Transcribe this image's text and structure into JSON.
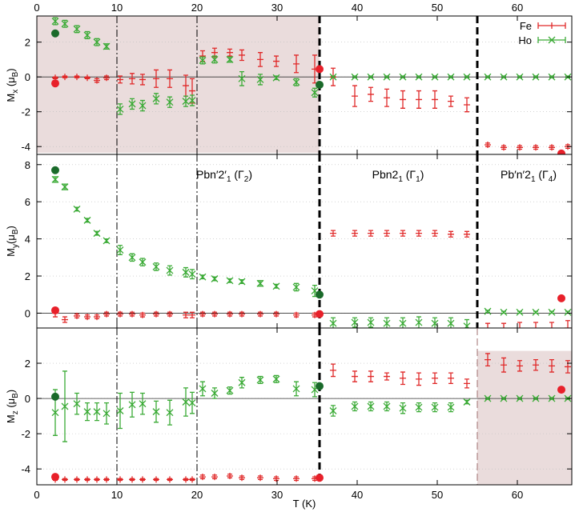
{
  "chart_data": [
    {
      "type": "scatter",
      "xlim": [
        0,
        66.8
      ],
      "ylim": [
        -4.45,
        3.5
      ],
      "xticks": [
        0,
        10,
        20,
        30,
        40,
        50,
        60
      ],
      "yticks": [
        -4,
        -2,
        0,
        2
      ],
      "xtick_labels": "top",
      "grid": true,
      "zero_line": true,
      "legend": "top-right",
      "ylabel": [
        "M",
        "x",
        " (μ",
        "B",
        ")"
      ],
      "shade": {
        "x": [
          0,
          35.3
        ],
        "y": [
          -4.35,
          3.5
        ],
        "color": "#eadcdc"
      },
      "vlines": [
        {
          "x": 10,
          "style": "dashdot"
        },
        {
          "x": 20,
          "style": "dashdot"
        },
        {
          "x": 35.3,
          "style": "dash-thick"
        },
        {
          "x": 55,
          "style": "dash-thick"
        }
      ],
      "series": [
        {
          "name": "Fe",
          "color": "#e02828",
          "marker": "plus",
          "x": [
            2.3,
            3.5,
            5,
            6.3,
            7.5,
            8.7,
            10.4,
            11.9,
            13.2,
            14.9,
            16.6,
            18.6,
            19.4,
            20.7,
            22.2,
            24.1,
            25.6,
            27.9,
            29.9,
            32.4,
            34.7,
            37,
            39.7,
            41.7,
            43.7,
            45.7,
            47.7,
            49.7,
            51.7,
            53.7,
            56.3,
            58.3,
            60.3,
            62.3,
            64.3,
            66.3
          ],
          "values": [
            -0.05,
            0,
            0,
            -0.05,
            -0.2,
            -0.05,
            -0.15,
            -0.1,
            -0.15,
            -0.1,
            -0.1,
            -0.5,
            -0.8,
            1.2,
            1.4,
            1.4,
            1.25,
            1,
            0.9,
            0.75,
            0.45,
            0,
            -1.1,
            -1,
            -1.2,
            -1.3,
            -1.3,
            -1.3,
            -1.4,
            -1.6,
            -3.9,
            -4.05,
            -4.05,
            -4.05,
            -4.05,
            -4
          ],
          "errors": [
            0.05,
            0.05,
            0.05,
            0.05,
            0.1,
            0.1,
            0.2,
            0.3,
            0.3,
            0.5,
            0.5,
            0.6,
            0.7,
            0.3,
            0.25,
            0.2,
            0.3,
            0.4,
            0.3,
            0.5,
            0.8,
            0.5,
            0.6,
            0.4,
            0.5,
            0.5,
            0.5,
            0.5,
            0.3,
            0.4,
            0.1,
            0.1,
            0.1,
            0.1,
            0.1,
            0.1
          ]
        },
        {
          "name": "Ho",
          "color": "#3aaa35",
          "marker": "cross",
          "x": [
            2.3,
            3.5,
            5,
            6.3,
            7.5,
            8.7,
            10.4,
            11.9,
            13.2,
            14.9,
            16.6,
            18.6,
            19.4,
            20.7,
            22.2,
            24.1,
            25.6,
            27.9,
            29.9,
            32.4,
            34.7,
            37,
            39.7,
            41.7,
            43.7,
            45.7,
            47.7,
            49.7,
            51.7,
            53.7,
            56.3,
            58.3,
            60.3,
            62.3,
            64.3,
            66.3
          ],
          "values": [
            3.2,
            3.05,
            2.75,
            2.4,
            2,
            1.75,
            -1.85,
            -1.55,
            -1.65,
            -1.25,
            -1.45,
            -1.4,
            -1.35,
            0.95,
            1,
            1,
            -0.1,
            -0.15,
            -0.05,
            -0.3,
            -0.9,
            0,
            0,
            0,
            0,
            0,
            0,
            0,
            0,
            0,
            0,
            0,
            0,
            0,
            0,
            0
          ],
          "errors": [
            0.2,
            0.2,
            0.2,
            0.2,
            0.2,
            0.15,
            0.3,
            0.3,
            0.3,
            0.3,
            0.3,
            0.3,
            0.3,
            0.2,
            0.2,
            0.15,
            0.4,
            0.3,
            0.1,
            0.2,
            0.25,
            0.05,
            0.05,
            0.05,
            0.05,
            0.05,
            0.05,
            0.05,
            0.05,
            0.05,
            0.05,
            0.05,
            0.05,
            0.05,
            0.05,
            0.05
          ]
        },
        {
          "color": "#1a6a2a",
          "marker": "dot",
          "x": [
            2.3,
            35.3
          ],
          "values": [
            2.5,
            -0.45
          ]
        },
        {
          "color": "#e8202a",
          "marker": "dot",
          "x": [
            2.3,
            35.3,
            65.5
          ],
          "values": [
            -0.37,
            0.45,
            -4.4
          ]
        }
      ]
    },
    {
      "type": "scatter",
      "xlim": [
        0,
        66.8
      ],
      "ylim": [
        -0.8,
        8.55
      ],
      "xticks": [
        0,
        10,
        20,
        30,
        40,
        50,
        60
      ],
      "yticks": [
        0,
        2,
        4,
        6,
        8
      ],
      "xtick_labels": "none",
      "grid": true,
      "zero_line": true,
      "ylabel": [
        "M",
        "y",
        "(μ",
        "B",
        ")"
      ],
      "annotations": [
        [
          "Pbn′2′",
          "1",
          " (Γ",
          "2",
          ")"
        ],
        [
          "Pbn2",
          "1",
          " (Γ",
          "1",
          ")"
        ],
        [
          "Pb′n′2",
          "1",
          " (Γ",
          "4",
          ")"
        ]
      ],
      "vlines": [
        {
          "x": 10,
          "style": "dashdot"
        },
        {
          "x": 20,
          "style": "dashdot"
        },
        {
          "x": 35.3,
          "style": "dash-thick"
        },
        {
          "x": 55,
          "style": "dash-thick"
        }
      ],
      "series": [
        {
          "color": "#e02828",
          "marker": "plus",
          "x": [
            2.3,
            3.5,
            5,
            6.3,
            7.5,
            8.7,
            10.4,
            11.9,
            13.2,
            14.9,
            16.6,
            18.6,
            19.4,
            20.7,
            22.2,
            24.1,
            25.6,
            27.9,
            29.9,
            32.4,
            34.7,
            37,
            39.7,
            41.7,
            43.7,
            45.7,
            47.7,
            49.7,
            51.7,
            53.7,
            56.3,
            58.3,
            60.3,
            62.3,
            64.3,
            66.3
          ],
          "values": [
            0,
            -0.35,
            -0.15,
            -0.2,
            -0.2,
            -0.05,
            -0.05,
            -0.05,
            -0.1,
            -0.05,
            -0.05,
            -0.1,
            -0.1,
            -0.05,
            -0.05,
            -0.05,
            -0.05,
            -0.05,
            -0.05,
            -0.1,
            -0.1,
            4.3,
            4.3,
            4.3,
            4.3,
            4.3,
            4.3,
            4.3,
            4.25,
            4.25,
            -0.95,
            -0.9,
            -0.85,
            -0.85,
            -0.85,
            -0.8
          ],
          "errors": [
            0.2,
            0.15,
            0.1,
            0.1,
            0.1,
            0.1,
            0.1,
            0.1,
            0.1,
            0.1,
            0.1,
            0.15,
            0.15,
            0.1,
            0.1,
            0.1,
            0.1,
            0.1,
            0.1,
            0.1,
            0.1,
            0.15,
            0.15,
            0.15,
            0.15,
            0.15,
            0.15,
            0.15,
            0.15,
            0.15,
            0.4,
            0.35,
            0.35,
            0.35,
            0.35,
            0.4
          ]
        },
        {
          "color": "#3aaa35",
          "marker": "cross",
          "x": [
            2.3,
            3.5,
            5,
            6.3,
            7.5,
            8.7,
            10.4,
            11.9,
            13.2,
            14.9,
            16.6,
            18.6,
            19.4,
            20.7,
            22.2,
            24.1,
            25.6,
            27.9,
            29.9,
            32.4,
            34.7,
            37,
            39.7,
            41.7,
            43.7,
            45.7,
            47.7,
            49.7,
            51.7,
            53.7,
            56.3,
            58.3,
            60.3,
            62.3,
            64.3,
            66.3
          ],
          "values": [
            7.2,
            6.8,
            5.6,
            5,
            4.3,
            3.9,
            3.4,
            3,
            2.75,
            2.5,
            2.3,
            2.2,
            2.1,
            1.95,
            1.85,
            1.75,
            1.7,
            1.6,
            1.45,
            1.4,
            1.2,
            -0.55,
            -0.5,
            -0.5,
            -0.55,
            -0.55,
            -0.5,
            -0.55,
            -0.55,
            -0.7,
            0.1,
            0.05,
            0.05,
            0.05,
            0.05,
            0.05
          ],
          "errors": [
            0.15,
            0.15,
            0.1,
            0.1,
            0.1,
            0.1,
            0.25,
            0.2,
            0.2,
            0.2,
            0.25,
            0.25,
            0.25,
            0.1,
            0.1,
            0.1,
            0.1,
            0.15,
            0.1,
            0.2,
            0.3,
            0.3,
            0.25,
            0.25,
            0.3,
            0.3,
            0.3,
            0.3,
            0.3,
            0.35,
            0.05,
            0.05,
            0.05,
            0.05,
            0.05,
            0.05
          ]
        },
        {
          "color": "#1a6a2a",
          "marker": "dot",
          "x": [
            2.3,
            35.3
          ],
          "values": [
            7.7,
            1.0
          ]
        },
        {
          "color": "#e8202a",
          "marker": "dot",
          "x": [
            2.3,
            35.3,
            65.5
          ],
          "values": [
            0.15,
            -0.05,
            0.8
          ]
        }
      ]
    },
    {
      "type": "scatter",
      "xlim": [
        0,
        66.8
      ],
      "ylim": [
        -4.9,
        4.0
      ],
      "xticks": [
        0,
        10,
        20,
        30,
        40,
        50,
        60
      ],
      "yticks": [
        -4,
        -2,
        0,
        2
      ],
      "xtick_labels": "bottom",
      "grid": true,
      "zero_line": true,
      "ylabel": [
        "M",
        "z",
        " (μ",
        "B",
        ")"
      ],
      "xlabel": "T (K)",
      "shade": {
        "x": [
          55,
          66.8
        ],
        "y": [
          -4.9,
          2.7
        ],
        "color": "#eadcdc"
      },
      "vlines": [
        {
          "x": 10,
          "style": "dashdot"
        },
        {
          "x": 20,
          "style": "dashdot"
        },
        {
          "x": 35.3,
          "style": "dash-thick"
        },
        {
          "x": 55,
          "style": "dash-thin"
        }
      ],
      "series": [
        {
          "color": "#e02828",
          "marker": "plus",
          "x": [
            2.3,
            3.5,
            5,
            6.3,
            7.5,
            8.7,
            10.4,
            11.9,
            13.2,
            14.9,
            16.6,
            18.6,
            19.4,
            20.7,
            22.2,
            24.1,
            25.6,
            27.9,
            29.9,
            32.4,
            34.7,
            37,
            39.7,
            41.7,
            43.7,
            45.7,
            47.7,
            49.7,
            51.7,
            53.7,
            56.3,
            58.3,
            60.3,
            62.3,
            64.3,
            66.3
          ],
          "values": [
            -4.6,
            -4.6,
            -4.6,
            -4.6,
            -4.6,
            -4.6,
            -4.6,
            -4.6,
            -4.6,
            -4.6,
            -4.6,
            -4.6,
            -4.6,
            -4.45,
            -4.45,
            -4.4,
            -4.5,
            -4.5,
            -4.55,
            -4.55,
            -4.55,
            1.6,
            1.25,
            1.25,
            1.25,
            1.15,
            1.1,
            1.15,
            1.15,
            0.85,
            2.2,
            1.9,
            1.85,
            1.9,
            1.85,
            1.8
          ],
          "errors": [
            0.05,
            0.05,
            0.05,
            0.05,
            0.05,
            0.05,
            0.05,
            0.05,
            0.05,
            0.05,
            0.05,
            0.05,
            0.05,
            0.1,
            0.1,
            0.1,
            0.1,
            0.1,
            0.1,
            0.1,
            0.1,
            0.35,
            0.3,
            0.3,
            0.2,
            0.35,
            0.35,
            0.3,
            0.3,
            0.25,
            0.35,
            0.4,
            0.3,
            0.3,
            0.35,
            0.35
          ]
        },
        {
          "color": "#3aaa35",
          "marker": "cross",
          "x": [
            2.3,
            3.5,
            5,
            6.3,
            7.5,
            8.7,
            10.4,
            11.9,
            13.2,
            14.9,
            16.6,
            18.6,
            19.4,
            20.7,
            22.2,
            24.1,
            25.6,
            27.9,
            29.9,
            32.4,
            34.7,
            37,
            39.7,
            41.7,
            43.7,
            45.7,
            47.7,
            49.7,
            51.7,
            53.7,
            56.3,
            58.3,
            60.3,
            62.3,
            64.3,
            66.3
          ],
          "values": [
            -0.8,
            -0.45,
            -0.3,
            -0.75,
            -0.75,
            -0.85,
            -0.7,
            -0.35,
            -0.3,
            -0.75,
            -0.8,
            -0.2,
            -0.25,
            0.55,
            0.3,
            0.45,
            0.9,
            1.05,
            1.1,
            0.55,
            0.5,
            -0.7,
            -0.45,
            -0.45,
            -0.45,
            -0.55,
            -0.5,
            -0.5,
            -0.5,
            -0.2,
            0,
            0,
            0,
            0,
            0,
            0
          ],
          "errors": [
            1.3,
            2,
            0.6,
            0.5,
            0.5,
            0.6,
            1,
            0.7,
            0.6,
            0.6,
            0.7,
            0.8,
            0.6,
            0.4,
            0.3,
            0.2,
            0.3,
            0.2,
            0.2,
            0.4,
            0.4,
            0.3,
            0.25,
            0.25,
            0.25,
            0.3,
            0.25,
            0.25,
            0.25,
            0.1,
            0.05,
            0.05,
            0.05,
            0.05,
            0.05,
            0.05
          ]
        },
        {
          "color": "#1a6a2a",
          "marker": "dot",
          "x": [
            2.3,
            35.3
          ],
          "values": [
            0.1,
            0.7
          ]
        },
        {
          "color": "#e8202a",
          "marker": "dot",
          "x": [
            2.3,
            35.3,
            65.5
          ],
          "values": [
            -4.45,
            -4.5,
            0.5
          ]
        }
      ]
    }
  ]
}
